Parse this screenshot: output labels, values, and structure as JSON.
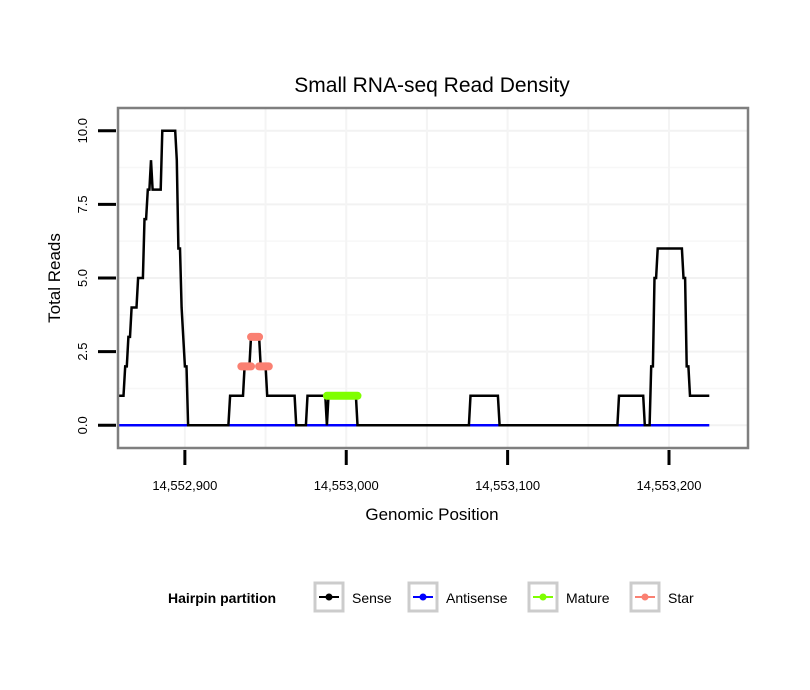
{
  "chart_data": {
    "type": "line",
    "title": "Small RNA-seq Read Density",
    "xlabel": "Genomic Position",
    "ylabel": "Total Reads",
    "xlim": [
      14552866,
      14553244
    ],
    "ylim": [
      -0.5,
      10.5
    ],
    "grid": true,
    "x_ticks": [
      14552900,
      14553000,
      14553100,
      14553200
    ],
    "x_tick_labels": [
      "14,552,900",
      "14,553,000",
      "14,553,100",
      "14,553,200"
    ],
    "y_ticks": [
      0,
      2.5,
      5,
      7.5,
      10
    ],
    "y_tick_labels": [
      "0.0",
      "2.5",
      "5.0",
      "7.5",
      "10.0"
    ],
    "legend": {
      "title": "Hairpin partition",
      "placement": "bottom",
      "entries": [
        {
          "name": "Sense",
          "color": "#000000"
        },
        {
          "name": "Antisense",
          "color": "#0000ff"
        },
        {
          "name": "Mature",
          "color": "#7fff00"
        },
        {
          "name": "Star",
          "color": "#fa8072"
        }
      ]
    },
    "series": [
      {
        "name": "Sense",
        "color": "#000000",
        "points": [
          [
            14552859,
            1
          ],
          [
            14552862,
            1
          ],
          [
            14552863,
            2
          ],
          [
            14552864,
            2
          ],
          [
            14552865,
            3
          ],
          [
            14552866,
            3
          ],
          [
            14552867,
            4
          ],
          [
            14552870,
            4
          ],
          [
            14552871,
            5
          ],
          [
            14552874,
            5
          ],
          [
            14552875,
            7
          ],
          [
            14552876,
            7
          ],
          [
            14552877,
            8
          ],
          [
            14552878,
            8
          ],
          [
            14552879,
            9
          ],
          [
            14552880,
            8
          ],
          [
            14552885,
            8
          ],
          [
            14552886,
            10
          ],
          [
            14552894,
            10
          ],
          [
            14552895,
            9
          ],
          [
            14552896,
            6
          ],
          [
            14552897,
            6
          ],
          [
            14552898,
            4
          ],
          [
            14552900,
            2
          ],
          [
            14552901,
            2
          ],
          [
            14552902,
            0
          ],
          [
            14552927,
            0
          ],
          [
            14552928,
            1
          ],
          [
            14552936,
            1
          ],
          [
            14552937,
            2
          ],
          [
            14552940,
            2
          ],
          [
            14552941,
            3
          ],
          [
            14552946,
            3
          ],
          [
            14552947,
            2
          ],
          [
            14552950,
            2
          ],
          [
            14552951,
            1
          ],
          [
            14552968,
            1
          ],
          [
            14552969,
            0
          ],
          [
            14552975,
            0
          ],
          [
            14552976,
            1
          ],
          [
            14552987,
            1
          ],
          [
            14552988,
            0
          ],
          [
            14552989,
            1
          ],
          [
            14553006,
            1
          ],
          [
            14553007,
            0
          ],
          [
            14553076,
            0
          ],
          [
            14553077,
            1
          ],
          [
            14553094,
            1
          ],
          [
            14553095,
            0
          ],
          [
            14553168,
            0
          ],
          [
            14553169,
            1
          ],
          [
            14553184,
            1
          ],
          [
            14553185,
            0
          ],
          [
            14553188,
            0
          ],
          [
            14553189,
            2
          ],
          [
            14553190,
            2
          ],
          [
            14553191,
            5
          ],
          [
            14553192,
            5
          ],
          [
            14553193,
            6
          ],
          [
            14553208,
            6
          ],
          [
            14553209,
            5
          ],
          [
            14553210,
            5
          ],
          [
            14553211,
            2
          ],
          [
            14553212,
            2
          ],
          [
            14553213,
            1
          ],
          [
            14553225,
            1
          ]
        ]
      },
      {
        "name": "Antisense",
        "color": "#0000ff",
        "points": [
          [
            14552859,
            0
          ],
          [
            14553225,
            0
          ]
        ]
      },
      {
        "name": "Mature",
        "color": "#7fff00",
        "points": [
          [
            14552988,
            1
          ],
          [
            14553007,
            1
          ]
        ]
      },
      {
        "name": "Star",
        "color": "#fa8072",
        "segments": [
          [
            [
              14552935,
              2
            ],
            [
              14552941,
              2
            ]
          ],
          [
            [
              14552941,
              3
            ],
            [
              14552946,
              3
            ]
          ],
          [
            [
              14552946,
              2
            ],
            [
              14552952,
              2
            ]
          ]
        ]
      }
    ]
  }
}
